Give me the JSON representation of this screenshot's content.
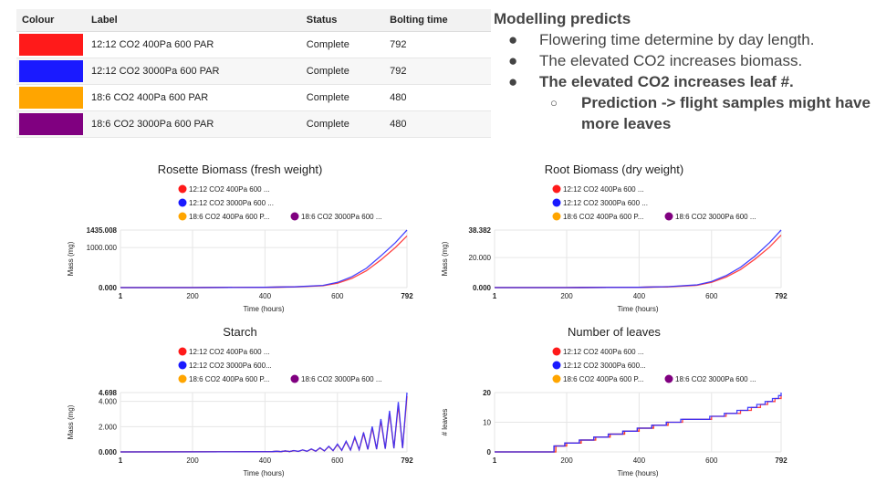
{
  "table": {
    "headers": [
      "Colour",
      "Label",
      "Status",
      "Bolting time"
    ],
    "rows": [
      {
        "colour": "#ff1a1a",
        "label": "12:12 CO2 400Pa 600 PAR",
        "status": "Complete",
        "bolting_time": "792"
      },
      {
        "colour": "#1a1aff",
        "label": "12:12 CO2 3000Pa 600 PAR",
        "status": "Complete",
        "bolting_time": "792"
      },
      {
        "colour": "#ffa500",
        "label": "18:6 CO2 400Pa 600 PAR",
        "status": "Complete",
        "bolting_time": "480"
      },
      {
        "colour": "#800080",
        "label": "18:6 CO2 3000Pa 600 PAR",
        "status": "Complete",
        "bolting_time": "480"
      }
    ]
  },
  "notes": {
    "heading": "Modelling predicts",
    "bullets": [
      "Flowering time determine by day length.",
      "The elevated CO2 increases biomass.",
      "The elevated CO2 increases leaf #."
    ],
    "sub_bullet": "Prediction -> flight samples might have more leaves",
    "bullet_glyph": "●",
    "sub_bullet_glyph": "○"
  },
  "chart_data": [
    {
      "type": "line",
      "title": "Rosette Biomass (fresh weight)",
      "xlabel": "Time (hours)",
      "ylabel": "Mass (mg)",
      "xlim": [
        1,
        792
      ],
      "ylim": [
        0,
        1435.008
      ],
      "x_ticks": [
        "1",
        "200",
        "400",
        "600",
        "792"
      ],
      "y_ticks": [
        "0.000",
        "1000.000",
        "1435.008"
      ],
      "legend": [
        "12:12 CO2 400Pa 600 ...",
        "12:12 CO2 3000Pa 600 ...",
        "18:6 CO2 400Pa 600 P...",
        "18:6 CO2 3000Pa 600 ..."
      ],
      "series": [
        {
          "name": "12:12 CO2 400Pa 600 ...",
          "color": "#ff3030",
          "x": [
            1,
            200,
            400,
            480,
            560,
            600,
            640,
            680,
            720,
            760,
            792
          ],
          "y": [
            0,
            0,
            5,
            15,
            45,
            110,
            230,
            420,
            690,
            1000,
            1290
          ]
        },
        {
          "name": "12:12 CO2 3000Pa 600 ...",
          "color": "#3030ff",
          "x": [
            1,
            200,
            400,
            480,
            560,
            600,
            640,
            680,
            720,
            760,
            792
          ],
          "y": [
            0,
            0,
            6,
            18,
            55,
            130,
            270,
            480,
            790,
            1120,
            1435
          ]
        },
        {
          "name": "18:6 CO2 400Pa 600 P...",
          "color": "#ffa500",
          "x": [
            1,
            200,
            400,
            480
          ],
          "y": [
            0,
            0,
            6,
            18
          ]
        },
        {
          "name": "18:6 CO2 3000Pa 600 ...",
          "color": "#800080",
          "x": [
            1,
            200,
            400,
            480
          ],
          "y": [
            0,
            0,
            7,
            20
          ]
        }
      ]
    },
    {
      "type": "line",
      "title": "Root Biomass (dry weight)",
      "xlabel": "Time (hours)",
      "ylabel": "Mass (mg)",
      "xlim": [
        1,
        792
      ],
      "ylim": [
        0,
        38.382
      ],
      "x_ticks": [
        "1",
        "200",
        "400",
        "600",
        "792"
      ],
      "y_ticks": [
        "0.000",
        "20.000",
        "38.382"
      ],
      "legend": [
        "12:12 CO2 400Pa 600 ...",
        "12:12 CO2 3000Pa 600 ...",
        "18:6 CO2 400Pa 600 P...",
        "18:6 CO2 3000Pa 600 ..."
      ],
      "series": [
        {
          "name": "12:12 CO2 400Pa 600 ...",
          "color": "#ff3030",
          "x": [
            1,
            200,
            400,
            480,
            560,
            600,
            640,
            680,
            720,
            760,
            792
          ],
          "y": [
            0,
            0,
            0.2,
            0.5,
            1.5,
            3.5,
            7,
            12,
            19,
            27,
            35
          ]
        },
        {
          "name": "12:12 CO2 3000Pa 600 ...",
          "color": "#3030ff",
          "x": [
            1,
            200,
            400,
            480,
            560,
            600,
            640,
            680,
            720,
            760,
            792
          ],
          "y": [
            0,
            0,
            0.2,
            0.6,
            1.8,
            4,
            8,
            13.5,
            21,
            30,
            38.382
          ]
        },
        {
          "name": "18:6 CO2 400Pa 600 P...",
          "color": "#ffa500",
          "x": [
            1,
            200,
            400,
            480
          ],
          "y": [
            0,
            0,
            0.2,
            0.5
          ]
        },
        {
          "name": "18:6 CO2 3000Pa 600 ...",
          "color": "#800080",
          "x": [
            1,
            200,
            400,
            480
          ],
          "y": [
            0,
            0,
            0.2,
            0.6
          ]
        }
      ]
    },
    {
      "type": "line",
      "title": "Starch",
      "xlabel": "Time (hours)",
      "ylabel": "Mass (mg)",
      "xlim": [
        1,
        792
      ],
      "ylim": [
        0,
        4.698
      ],
      "x_ticks": [
        "1",
        "200",
        "400",
        "600",
        "792"
      ],
      "y_ticks": [
        "0.000",
        "2.000",
        "4.000",
        "4.698"
      ],
      "legend": [
        "12:12 CO2 400Pa 600 ...",
        "12:12 CO2 3000Pa 600...",
        "18:6 CO2 400Pa 600 P...",
        "18:6 CO2 3000Pa 600 ..."
      ],
      "series": [
        {
          "name": "12:12 CO2 400Pa 600 ...",
          "color": "#ff3030",
          "x": [
            1,
            300,
            420,
            432,
            444,
            456,
            468,
            480,
            492,
            504,
            516,
            528,
            540,
            552,
            564,
            576,
            588,
            600,
            612,
            624,
            636,
            648,
            660,
            672,
            684,
            696,
            708,
            720,
            732,
            744,
            756,
            768,
            780,
            792
          ],
          "y": [
            0,
            0.01,
            0.02,
            0.04,
            0.02,
            0.07,
            0.03,
            0.1,
            0.04,
            0.15,
            0.05,
            0.22,
            0.06,
            0.3,
            0.08,
            0.42,
            0.1,
            0.58,
            0.12,
            0.8,
            0.15,
            1.1,
            0.18,
            1.45,
            0.2,
            1.9,
            0.22,
            2.45,
            0.25,
            3.05,
            0.28,
            3.7,
            0.3,
            4.4
          ]
        },
        {
          "name": "12:12 CO2 3000Pa 600...",
          "color": "#3030ff",
          "x": [
            1,
            300,
            420,
            432,
            444,
            456,
            468,
            480,
            492,
            504,
            516,
            528,
            540,
            552,
            564,
            576,
            588,
            600,
            612,
            624,
            636,
            648,
            660,
            672,
            684,
            696,
            708,
            720,
            732,
            744,
            756,
            768,
            780,
            792
          ],
          "y": [
            0,
            0.01,
            0.02,
            0.05,
            0.02,
            0.08,
            0.03,
            0.11,
            0.04,
            0.16,
            0.05,
            0.24,
            0.06,
            0.33,
            0.08,
            0.45,
            0.1,
            0.62,
            0.12,
            0.85,
            0.15,
            1.18,
            0.18,
            1.55,
            0.2,
            2.02,
            0.22,
            2.6,
            0.25,
            3.25,
            0.28,
            3.95,
            0.3,
            4.698
          ]
        },
        {
          "name": "18:6 CO2 400Pa 600 P...",
          "color": "#ffa500",
          "x": [
            1,
            300,
            420,
            432,
            444,
            456,
            468,
            480
          ],
          "y": [
            0,
            0.01,
            0.02,
            0.04,
            0.02,
            0.07,
            0.03,
            0.1
          ]
        },
        {
          "name": "18:6 CO2 3000Pa 600 ...",
          "color": "#800080",
          "x": [
            1,
            300,
            420,
            432,
            444,
            456,
            468,
            480
          ],
          "y": [
            0,
            0.01,
            0.02,
            0.05,
            0.02,
            0.08,
            0.03,
            0.11
          ]
        }
      ]
    },
    {
      "type": "line",
      "title": "Number of leaves",
      "xlabel": "Time (hours)",
      "ylabel": "# leaves",
      "xlim": [
        1,
        792
      ],
      "ylim": [
        0,
        20
      ],
      "x_ticks": [
        "1",
        "200",
        "400",
        "600",
        "792"
      ],
      "y_ticks": [
        "0",
        "10",
        "20"
      ],
      "legend": [
        "12:12 CO2 400Pa 600 ...",
        "12:12 CO2 3000Pa 600...",
        "18:6 CO2 400Pa 600 P...",
        "18:6 CO2 3000Pa 600 ..."
      ],
      "step": true,
      "series": [
        {
          "name": "12:12 CO2 400Pa 600 ...",
          "color": "#ff3030",
          "x": [
            1,
            150,
            170,
            200,
            240,
            280,
            320,
            360,
            400,
            440,
            480,
            520,
            560,
            600,
            640,
            680,
            710,
            735,
            755,
            775,
            792
          ],
          "y": [
            0,
            0,
            2,
            3,
            4,
            5,
            6,
            7,
            8,
            9,
            10,
            11,
            11,
            12,
            13,
            14,
            15,
            16,
            17,
            18,
            19
          ]
        },
        {
          "name": "12:12 CO2 3000Pa 600...",
          "color": "#3030ff",
          "x": [
            1,
            150,
            165,
            195,
            235,
            275,
            315,
            355,
            395,
            435,
            475,
            515,
            555,
            595,
            635,
            670,
            700,
            725,
            748,
            768,
            785,
            792
          ],
          "y": [
            0,
            0,
            2,
            3,
            4,
            5,
            6,
            7,
            8,
            9,
            10,
            11,
            11,
            12,
            13,
            14,
            15,
            16,
            17,
            18,
            19,
            20
          ]
        },
        {
          "name": "18:6 CO2 400Pa 600 P...",
          "color": "#ffa500",
          "x": [
            1,
            150,
            170,
            200,
            240,
            280,
            320,
            360,
            400,
            440,
            480
          ],
          "y": [
            0,
            0,
            2,
            3,
            4,
            5,
            6,
            7,
            8,
            9,
            10
          ]
        },
        {
          "name": "18:6 CO2 3000Pa 600 ...",
          "color": "#800080",
          "x": [
            1,
            150,
            165,
            195,
            235,
            275,
            315,
            355,
            395,
            435,
            475,
            480
          ],
          "y": [
            0,
            0,
            2,
            3,
            4,
            5,
            6,
            7,
            8,
            9,
            10,
            10
          ]
        }
      ]
    }
  ]
}
